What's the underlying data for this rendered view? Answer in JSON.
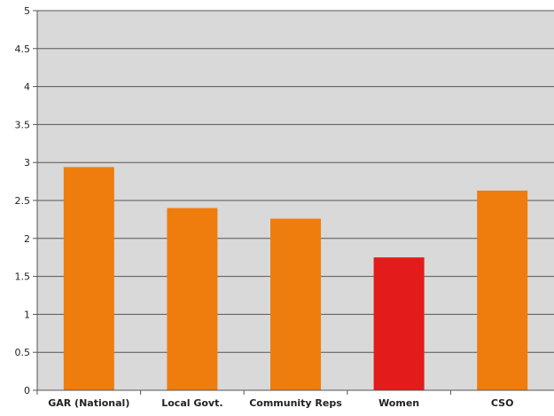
{
  "chart_data": {
    "type": "bar",
    "title": "",
    "xlabel": "",
    "ylabel": "",
    "ylim": [
      0,
      5
    ],
    "yticks": [
      "0",
      "0.5",
      "1",
      "1.5",
      "2",
      "2.5",
      "3",
      "3.5",
      "4",
      "4.5",
      "5"
    ],
    "categories": [
      "GAR (National)",
      "Local Govt.",
      "Community Reps",
      "Women",
      "CSO"
    ],
    "values": [
      2.94,
      2.4,
      2.26,
      1.75,
      2.63
    ],
    "bar_colors": [
      "#ef7d0d",
      "#ef7d0d",
      "#ef7d0d",
      "#e31b1b",
      "#ef7d0d"
    ],
    "grid": true,
    "legend": "none",
    "colors": {
      "plot_background": "#d9d9d9",
      "gridline": "#555555",
      "axis": "#555555"
    }
  }
}
